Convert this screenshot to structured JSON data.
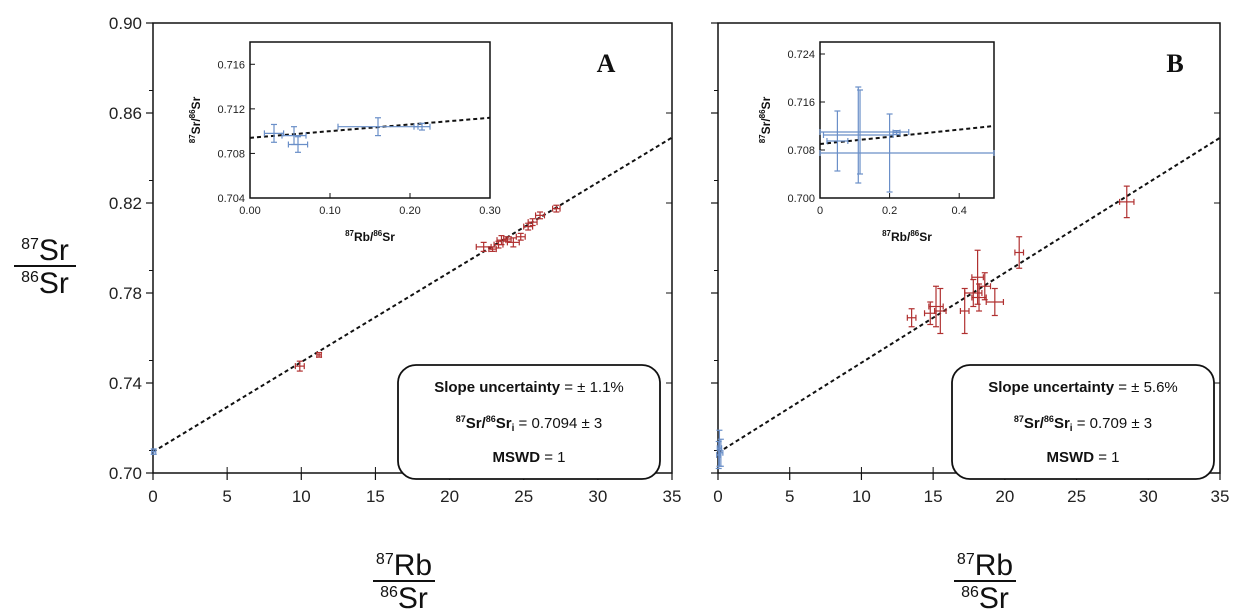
{
  "y_fraction": {
    "num_mass": "87",
    "num_elem": "Sr",
    "den_mass": "86",
    "den_elem": "Sr"
  },
  "x_fraction": {
    "num_mass": "87",
    "num_elem": "Rb",
    "den_mass": "86",
    "den_elem": "Sr"
  },
  "chart_data": [
    {
      "type": "scatter",
      "panel": "A",
      "xlim": [
        0,
        35
      ],
      "ylim": [
        0.7,
        0.9
      ],
      "xticks": [
        "0",
        "5",
        "10",
        "15",
        "20",
        "25",
        "30",
        "35"
      ],
      "yticks": [
        "0.70",
        "0.74",
        "0.78",
        "0.82",
        "0.86",
        "0.90"
      ],
      "fit_line": {
        "x": [
          0,
          35
        ],
        "y": [
          0.7094,
          0.8491
        ]
      },
      "series": [
        {
          "color": "#b03030",
          "points": [
            {
              "x": 9.9,
              "y": 0.7475,
              "xerr": 0.3,
              "yerr": 0.0022
            },
            {
              "x": 11.2,
              "y": 0.7525,
              "xerr": 0.15,
              "yerr": 0.001
            },
            {
              "x": 22.3,
              "y": 0.8005,
              "xerr": 0.5,
              "yerr": 0.002
            },
            {
              "x": 22.9,
              "y": 0.7995,
              "xerr": 0.25,
              "yerr": 0.001
            },
            {
              "x": 23.3,
              "y": 0.8015,
              "xerr": 0.3,
              "yerr": 0.0015
            },
            {
              "x": 23.5,
              "y": 0.8035,
              "xerr": 0.3,
              "yerr": 0.002
            },
            {
              "x": 23.9,
              "y": 0.804,
              "xerr": 0.25,
              "yerr": 0.001
            },
            {
              "x": 24.3,
              "y": 0.8025,
              "xerr": 0.4,
              "yerr": 0.002
            },
            {
              "x": 24.8,
              "y": 0.805,
              "xerr": 0.3,
              "yerr": 0.0015
            },
            {
              "x": 25.3,
              "y": 0.8095,
              "xerr": 0.3,
              "yerr": 0.0015
            },
            {
              "x": 25.6,
              "y": 0.8115,
              "xerr": 0.3,
              "yerr": 0.0015
            },
            {
              "x": 26.1,
              "y": 0.8145,
              "xerr": 0.3,
              "yerr": 0.0015
            },
            {
              "x": 27.2,
              "y": 0.8175,
              "xerr": 0.25,
              "yerr": 0.0015
            }
          ]
        },
        {
          "color": "#6a8fc8",
          "points": [
            {
              "x": 0.05,
              "y": 0.7095,
              "xerr": 0.08,
              "yerr": 0.0012
            }
          ]
        }
      ],
      "stats": {
        "slope_label": "Slope uncertainty",
        "slope_value": " = ± 1.1%",
        "ratio_mass1": "87",
        "ratio_el1": "Sr/",
        "ratio_mass2": "86",
        "ratio_el2": "Sr",
        "ratio_sub": "i",
        "ratio_value": " = 0.7094 ± 3",
        "mswd_label": "MSWD",
        "mswd_value": " = 1"
      },
      "inset": {
        "xlim": [
          0,
          0.3
        ],
        "ylim": [
          0.704,
          0.718
        ],
        "xticks": [
          "0.00",
          "0.10",
          "0.20",
          "0.30"
        ],
        "yticks": [
          "0.704",
          "0.708",
          "0.712",
          "0.716"
        ],
        "xlabel": {
          "m1": "87",
          "e1": "Rb/",
          "m2": "86",
          "e2": "Sr"
        },
        "ylabel": {
          "m1": "87",
          "e1": "Sr/",
          "m2": "86",
          "e2": "Sr"
        },
        "fit_line": {
          "x": [
            0,
            0.3
          ],
          "y": [
            0.7094,
            0.7112
          ]
        },
        "points": [
          {
            "x": 0.03,
            "y": 0.7098,
            "xerr": 0.012,
            "yerr": 0.0008
          },
          {
            "x": 0.055,
            "y": 0.7096,
            "xerr": 0.015,
            "yerr": 0.0008
          },
          {
            "x": 0.06,
            "y": 0.7088,
            "xerr": 0.012,
            "yerr": 0.0007
          },
          {
            "x": 0.16,
            "y": 0.7104,
            "xerr": 0.05,
            "yerr": 0.0008
          },
          {
            "x": 0.215,
            "y": 0.7104,
            "xerr": 0.01,
            "yerr": 0.0003
          }
        ]
      }
    },
    {
      "type": "scatter",
      "panel": "B",
      "xlim": [
        0,
        35
      ],
      "ylim": [
        0.7,
        0.9
      ],
      "xticks": [
        "0",
        "5",
        "10",
        "15",
        "20",
        "25",
        "30",
        "35"
      ],
      "yticks": [
        "0.70",
        "0.74",
        "0.78",
        "0.82",
        "0.86",
        "0.90"
      ],
      "fit_line": {
        "x": [
          0,
          35
        ],
        "y": [
          0.709,
          0.849
        ]
      },
      "series": [
        {
          "color": "#b03030",
          "points": [
            {
              "x": 13.5,
              "y": 0.769,
              "xerr": 0.3,
              "yerr": 0.004
            },
            {
              "x": 14.8,
              "y": 0.771,
              "xerr": 0.4,
              "yerr": 0.005
            },
            {
              "x": 15.2,
              "y": 0.774,
              "xerr": 0.5,
              "yerr": 0.009
            },
            {
              "x": 15.5,
              "y": 0.772,
              "xerr": 0.4,
              "yerr": 0.01
            },
            {
              "x": 17.2,
              "y": 0.772,
              "xerr": 0.3,
              "yerr": 0.01
            },
            {
              "x": 17.8,
              "y": 0.78,
              "xerr": 0.6,
              "yerr": 0.006
            },
            {
              "x": 18.1,
              "y": 0.787,
              "xerr": 0.4,
              "yerr": 0.012
            },
            {
              "x": 18.2,
              "y": 0.778,
              "xerr": 0.5,
              "yerr": 0.006
            },
            {
              "x": 18.6,
              "y": 0.783,
              "xerr": 0.4,
              "yerr": 0.006
            },
            {
              "x": 19.3,
              "y": 0.776,
              "xerr": 0.6,
              "yerr": 0.006
            },
            {
              "x": 21.0,
              "y": 0.798,
              "xerr": 0.3,
              "yerr": 0.007
            },
            {
              "x": 28.5,
              "y": 0.8205,
              "xerr": 0.5,
              "yerr": 0.007
            }
          ]
        },
        {
          "color": "#6a8fc8",
          "points": [
            {
              "x": 0.05,
              "y": 0.708,
              "xerr": 0.1,
              "yerr": 0.006
            },
            {
              "x": 0.1,
              "y": 0.711,
              "xerr": 0.15,
              "yerr": 0.008
            },
            {
              "x": 0.2,
              "y": 0.709,
              "xerr": 0.1,
              "yerr": 0.006
            }
          ]
        }
      ],
      "stats": {
        "slope_label": "Slope uncertainty",
        "slope_value": " = ± 5.6%",
        "ratio_mass1": "87",
        "ratio_el1": "Sr/",
        "ratio_mass2": "86",
        "ratio_el2": "Sr",
        "ratio_sub": "i",
        "ratio_value": " = 0.709 ± 3",
        "mswd_label": "MSWD",
        "mswd_value": " = 1"
      },
      "inset": {
        "xlim": [
          0,
          0.5
        ],
        "ylim": [
          0.7,
          0.726
        ],
        "xticks": [
          "0",
          "0.2",
          "0.4"
        ],
        "yticks": [
          "0.700",
          "0.708",
          "0.716",
          "0.724"
        ],
        "xlabel": {
          "m1": "87",
          "e1": "Rb/",
          "m2": "86",
          "e2": "Sr"
        },
        "ylabel": {
          "m1": "87",
          "e1": "Sr/",
          "m2": "86",
          "e2": "Sr"
        },
        "fit_line": {
          "x": [
            0,
            0.5
          ],
          "y": [
            0.709,
            0.712
          ]
        },
        "points": [
          {
            "x": 0.05,
            "y": 0.7095,
            "xerr": 0.03,
            "yerr": 0.005
          },
          {
            "x": 0.11,
            "y": 0.7105,
            "xerr": 0.1,
            "yerr": 0.008
          },
          {
            "x": 0.115,
            "y": 0.711,
            "xerr": 0.14,
            "yerr": 0.007
          },
          {
            "x": 0.2,
            "y": 0.7075,
            "xerr": 0.35,
            "yerr": 0.0065
          },
          {
            "x": 0.22,
            "y": 0.7109,
            "xerr": 0.01,
            "yerr": 0.0003
          }
        ]
      }
    }
  ]
}
